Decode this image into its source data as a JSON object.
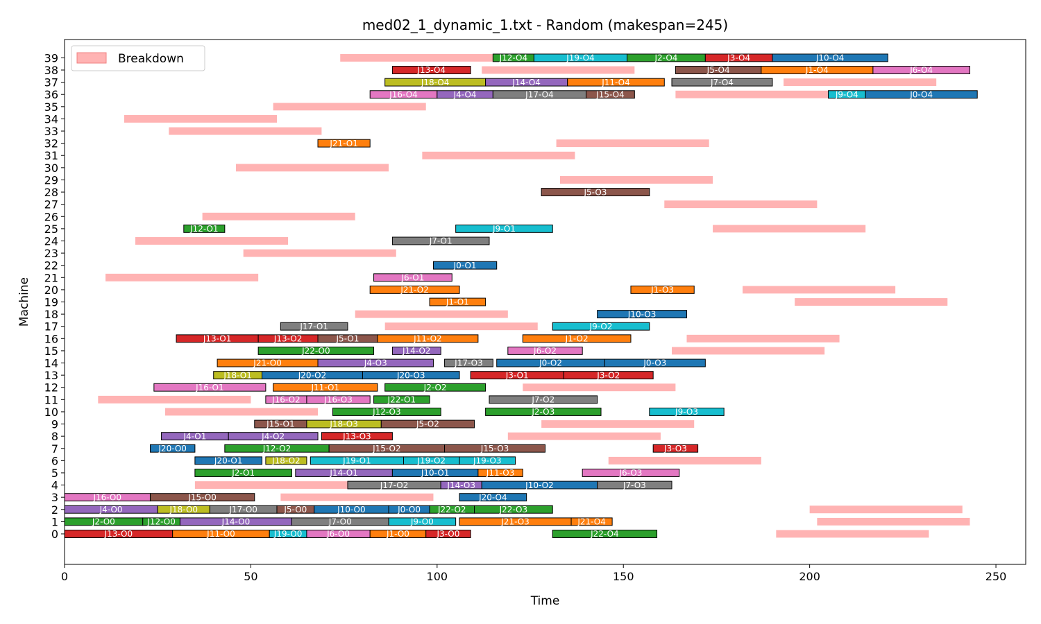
{
  "chart_data": {
    "type": "gantt",
    "title": "med02_1_dynamic_1.txt - Random (makespan=245)",
    "xlabel": "Time",
    "ylabel": "Machine",
    "xlim": [
      0,
      258
    ],
    "ylim": [
      -2.5,
      40.5
    ],
    "xticks": [
      0,
      50,
      100,
      150,
      200,
      250
    ],
    "yticks": [
      0,
      1,
      2,
      3,
      4,
      5,
      6,
      7,
      8,
      9,
      10,
      11,
      12,
      13,
      14,
      15,
      16,
      17,
      18,
      19,
      20,
      21,
      22,
      23,
      24,
      25,
      26,
      27,
      28,
      29,
      30,
      31,
      32,
      33,
      34,
      35,
      36,
      37,
      38,
      39
    ],
    "grid": false,
    "legend": {
      "position": "top-left",
      "entries": [
        {
          "label": "Breakdown",
          "color": "#ffb3b3"
        }
      ]
    },
    "job_colors": {
      "J0": "#1f77b4",
      "J1": "#ff7f0e",
      "J2": "#2ca02c",
      "J3": "#d62728",
      "J4": "#9467bd",
      "J5": "#8c564b",
      "J6": "#e377c2",
      "J7": "#7f7f7f",
      "J8": "#bcbd22",
      "J9": "#17becf",
      "J10": "#1f77b4",
      "J11": "#ff7f0e",
      "J12": "#2ca02c",
      "J13": "#d62728",
      "J14": "#9467bd",
      "J15": "#8c564b",
      "J16": "#e377c2",
      "J17": "#7f7f7f",
      "J18": "#bcbd22",
      "J19": "#17becf",
      "J20": "#1f77b4",
      "J21": "#ff7f0e",
      "J22": "#2ca02c"
    },
    "breakdown_color": "#ffb3b3",
    "breakdowns": [
      {
        "machine": 39,
        "start": 74,
        "end": 115
      },
      {
        "machine": 38,
        "start": 112,
        "end": 153
      },
      {
        "machine": 37,
        "start": 193,
        "end": 234
      },
      {
        "machine": 36,
        "start": 164,
        "end": 205
      },
      {
        "machine": 35,
        "start": 56,
        "end": 97
      },
      {
        "machine": 34,
        "start": 16,
        "end": 57
      },
      {
        "machine": 33,
        "start": 28,
        "end": 69
      },
      {
        "machine": 32,
        "start": 132,
        "end": 173
      },
      {
        "machine": 31,
        "start": 96,
        "end": 137
      },
      {
        "machine": 30,
        "start": 46,
        "end": 87
      },
      {
        "machine": 29,
        "start": 133,
        "end": 174
      },
      {
        "machine": 27,
        "start": 161,
        "end": 202
      },
      {
        "machine": 26,
        "start": 37,
        "end": 78
      },
      {
        "machine": 25,
        "start": 174,
        "end": 215
      },
      {
        "machine": 24,
        "start": 19,
        "end": 60
      },
      {
        "machine": 23,
        "start": 48,
        "end": 89
      },
      {
        "machine": 21,
        "start": 11,
        "end": 52
      },
      {
        "machine": 20,
        "start": 182,
        "end": 223
      },
      {
        "machine": 19,
        "start": 196,
        "end": 237
      },
      {
        "machine": 18,
        "start": 78,
        "end": 119
      },
      {
        "machine": 17,
        "start": 86,
        "end": 127
      },
      {
        "machine": 16,
        "start": 167,
        "end": 208
      },
      {
        "machine": 15,
        "start": 163,
        "end": 204
      },
      {
        "machine": 12,
        "start": 123,
        "end": 164
      },
      {
        "machine": 11,
        "start": 9,
        "end": 50
      },
      {
        "machine": 10,
        "start": 27,
        "end": 68
      },
      {
        "machine": 9,
        "start": 128,
        "end": 169
      },
      {
        "machine": 8,
        "start": 119,
        "end": 160
      },
      {
        "machine": 6,
        "start": 146,
        "end": 187
      },
      {
        "machine": 4,
        "start": 35,
        "end": 76
      },
      {
        "machine": 3,
        "start": 58,
        "end": 99
      },
      {
        "machine": 2,
        "start": 200,
        "end": 241
      },
      {
        "machine": 1,
        "start": 202,
        "end": 243
      },
      {
        "machine": 0,
        "start": 191,
        "end": 232
      }
    ],
    "operations": [
      {
        "machine": 39,
        "label": "J12-O4",
        "job": "J12",
        "start": 115,
        "end": 126
      },
      {
        "machine": 39,
        "label": "J19-O4",
        "job": "J19",
        "start": 126,
        "end": 151
      },
      {
        "machine": 39,
        "label": "J2-O4",
        "job": "J2",
        "start": 151,
        "end": 172
      },
      {
        "machine": 39,
        "label": "J3-O4",
        "job": "J3",
        "start": 172,
        "end": 190
      },
      {
        "machine": 39,
        "label": "J10-O4",
        "job": "J10",
        "start": 190,
        "end": 221
      },
      {
        "machine": 38,
        "label": "J13-O4",
        "job": "J13",
        "start": 88,
        "end": 109
      },
      {
        "machine": 38,
        "label": "J5-O4",
        "job": "J5",
        "start": 164,
        "end": 187
      },
      {
        "machine": 38,
        "label": "J1-O4",
        "job": "J1",
        "start": 187,
        "end": 217
      },
      {
        "machine": 38,
        "label": "J6-O4",
        "job": "J6",
        "start": 217,
        "end": 243
      },
      {
        "machine": 37,
        "label": "J18-O4",
        "job": "J18",
        "start": 86,
        "end": 113
      },
      {
        "machine": 37,
        "label": "J14-O4",
        "job": "J14",
        "start": 113,
        "end": 135
      },
      {
        "machine": 37,
        "label": "J11-O4",
        "job": "J11",
        "start": 135,
        "end": 161
      },
      {
        "machine": 37,
        "label": "J7-O4",
        "job": "J7",
        "start": 163,
        "end": 190
      },
      {
        "machine": 36,
        "label": "J16-O4",
        "job": "J16",
        "start": 82,
        "end": 100
      },
      {
        "machine": 36,
        "label": "J4-O4",
        "job": "J4",
        "start": 100,
        "end": 115
      },
      {
        "machine": 36,
        "label": "J17-O4",
        "job": "J17",
        "start": 115,
        "end": 140
      },
      {
        "machine": 36,
        "label": "J15-O4",
        "job": "J15",
        "start": 140,
        "end": 153
      },
      {
        "machine": 36,
        "label": "J9-O4",
        "job": "J9",
        "start": 205,
        "end": 215
      },
      {
        "machine": 36,
        "label": "J0-O4",
        "job": "J0",
        "start": 215,
        "end": 245
      },
      {
        "machine": 32,
        "label": "J21-O1",
        "job": "J21",
        "start": 68,
        "end": 82
      },
      {
        "machine": 28,
        "label": "J5-O3",
        "job": "J5",
        "start": 128,
        "end": 157
      },
      {
        "machine": 25,
        "label": "J12-O1",
        "job": "J12",
        "start": 32,
        "end": 43
      },
      {
        "machine": 25,
        "label": "J9-O1",
        "job": "J9",
        "start": 105,
        "end": 131
      },
      {
        "machine": 24,
        "label": "J7-O1",
        "job": "J7",
        "start": 88,
        "end": 114
      },
      {
        "machine": 22,
        "label": "J0-O1",
        "job": "J0",
        "start": 99,
        "end": 116
      },
      {
        "machine": 21,
        "label": "J6-O1",
        "job": "J6",
        "start": 83,
        "end": 104
      },
      {
        "machine": 20,
        "label": "J21-O2",
        "job": "J21",
        "start": 82,
        "end": 106
      },
      {
        "machine": 20,
        "label": "J1-O3",
        "job": "J1",
        "start": 152,
        "end": 169
      },
      {
        "machine": 19,
        "label": "J1-O1",
        "job": "J1",
        "start": 98,
        "end": 113
      },
      {
        "machine": 18,
        "label": "J10-O3",
        "job": "J10",
        "start": 143,
        "end": 167
      },
      {
        "machine": 17,
        "label": "J17-O1",
        "job": "J17",
        "start": 58,
        "end": 76
      },
      {
        "machine": 17,
        "label": "J9-O2",
        "job": "J9",
        "start": 131,
        "end": 157
      },
      {
        "machine": 16,
        "label": "J13-O1",
        "job": "J13",
        "start": 30,
        "end": 52
      },
      {
        "machine": 16,
        "label": "J13-O2",
        "job": "J13",
        "start": 52,
        "end": 68
      },
      {
        "machine": 16,
        "label": "J5-O1",
        "job": "J5",
        "start": 68,
        "end": 84
      },
      {
        "machine": 16,
        "label": "J11-O2",
        "job": "J11",
        "start": 84,
        "end": 111
      },
      {
        "machine": 16,
        "label": "J1-O2",
        "job": "J1",
        "start": 123,
        "end": 152
      },
      {
        "machine": 15,
        "label": "J22-O0",
        "job": "J22",
        "start": 52,
        "end": 83
      },
      {
        "machine": 15,
        "label": "J14-O2",
        "job": "J14",
        "start": 88,
        "end": 101
      },
      {
        "machine": 15,
        "label": "J6-O2",
        "job": "J6",
        "start": 119,
        "end": 139
      },
      {
        "machine": 14,
        "label": "J21-O0",
        "job": "J21",
        "start": 41,
        "end": 68
      },
      {
        "machine": 14,
        "label": "J4-O3",
        "job": "J4",
        "start": 68,
        "end": 99
      },
      {
        "machine": 14,
        "label": "J17-O3",
        "job": "J17",
        "start": 102,
        "end": 115
      },
      {
        "machine": 14,
        "label": "J0-O2",
        "job": "J0",
        "start": 116,
        "end": 145
      },
      {
        "machine": 14,
        "label": "J0-O3",
        "job": "J0",
        "start": 145,
        "end": 172
      },
      {
        "machine": 13,
        "label": "J18-O1",
        "job": "J18",
        "start": 40,
        "end": 53
      },
      {
        "machine": 13,
        "label": "J20-O2",
        "job": "J20",
        "start": 53,
        "end": 80
      },
      {
        "machine": 13,
        "label": "J20-O3",
        "job": "J20",
        "start": 80,
        "end": 106
      },
      {
        "machine": 13,
        "label": "J3-O1",
        "job": "J3",
        "start": 109,
        "end": 134
      },
      {
        "machine": 13,
        "label": "J3-O2",
        "job": "J3",
        "start": 134,
        "end": 158
      },
      {
        "machine": 12,
        "label": "J16-O1",
        "job": "J16",
        "start": 24,
        "end": 54
      },
      {
        "machine": 12,
        "label": "J11-O1",
        "job": "J11",
        "start": 56,
        "end": 84
      },
      {
        "machine": 12,
        "label": "J2-O2",
        "job": "J2",
        "start": 86,
        "end": 113
      },
      {
        "machine": 11,
        "label": "J16-O2",
        "job": "J16",
        "start": 54,
        "end": 65
      },
      {
        "machine": 11,
        "label": "J16-O3",
        "job": "J16",
        "start": 65,
        "end": 82
      },
      {
        "machine": 11,
        "label": "J22-O1",
        "job": "J22",
        "start": 83,
        "end": 98
      },
      {
        "machine": 11,
        "label": "J7-O2",
        "job": "J7",
        "start": 114,
        "end": 143
      },
      {
        "machine": 10,
        "label": "J12-O3",
        "job": "J12",
        "start": 72,
        "end": 101
      },
      {
        "machine": 10,
        "label": "J2-O3",
        "job": "J2",
        "start": 113,
        "end": 144
      },
      {
        "machine": 10,
        "label": "J9-O3",
        "job": "J9",
        "start": 157,
        "end": 177
      },
      {
        "machine": 9,
        "label": "J15-O1",
        "job": "J15",
        "start": 51,
        "end": 65
      },
      {
        "machine": 9,
        "label": "J18-O3",
        "job": "J18",
        "start": 65,
        "end": 85
      },
      {
        "machine": 9,
        "label": "J5-O2",
        "job": "J5",
        "start": 85,
        "end": 110
      },
      {
        "machine": 8,
        "label": "J4-O1",
        "job": "J4",
        "start": 26,
        "end": 44
      },
      {
        "machine": 8,
        "label": "J4-O2",
        "job": "J4",
        "start": 44,
        "end": 68
      },
      {
        "machine": 8,
        "label": "J13-O3",
        "job": "J13",
        "start": 69,
        "end": 88
      },
      {
        "machine": 7,
        "label": "J20-O0",
        "job": "J20",
        "start": 23,
        "end": 35
      },
      {
        "machine": 7,
        "label": "J12-O2",
        "job": "J12",
        "start": 43,
        "end": 71
      },
      {
        "machine": 7,
        "label": "J15-O2",
        "job": "J15",
        "start": 71,
        "end": 102
      },
      {
        "machine": 7,
        "label": "J15-O3",
        "job": "J15",
        "start": 102,
        "end": 129
      },
      {
        "machine": 7,
        "label": "J3-O3",
        "job": "J3",
        "start": 158,
        "end": 170
      },
      {
        "machine": 6,
        "label": "J20-O1",
        "job": "J20",
        "start": 35,
        "end": 53
      },
      {
        "machine": 6,
        "label": "J18-O2",
        "job": "J18",
        "start": 54,
        "end": 65
      },
      {
        "machine": 6,
        "label": "J19-O1",
        "job": "J19",
        "start": 66,
        "end": 91
      },
      {
        "machine": 6,
        "label": "J19-O2",
        "job": "J19",
        "start": 91,
        "end": 106
      },
      {
        "machine": 6,
        "label": "J19-O3",
        "job": "J19",
        "start": 106,
        "end": 121
      },
      {
        "machine": 5,
        "label": "J2-O1",
        "job": "J2",
        "start": 35,
        "end": 61
      },
      {
        "machine": 5,
        "label": "J14-O1",
        "job": "J14",
        "start": 62,
        "end": 88
      },
      {
        "machine": 5,
        "label": "J10-O1",
        "job": "J10",
        "start": 88,
        "end": 111
      },
      {
        "machine": 5,
        "label": "J11-O3",
        "job": "J11",
        "start": 111,
        "end": 123
      },
      {
        "machine": 5,
        "label": "J6-O3",
        "job": "J6",
        "start": 139,
        "end": 165
      },
      {
        "machine": 4,
        "label": "J17-O2",
        "job": "J17",
        "start": 76,
        "end": 101
      },
      {
        "machine": 4,
        "label": "J14-O3",
        "job": "J14",
        "start": 101,
        "end": 112
      },
      {
        "machine": 4,
        "label": "J10-O2",
        "job": "J10",
        "start": 112,
        "end": 143
      },
      {
        "machine": 4,
        "label": "J7-O3",
        "job": "J7",
        "start": 143,
        "end": 163
      },
      {
        "machine": 3,
        "label": "J16-O0",
        "job": "J16",
        "start": 0,
        "end": 23
      },
      {
        "machine": 3,
        "label": "J15-O0",
        "job": "J15",
        "start": 23,
        "end": 51
      },
      {
        "machine": 3,
        "label": "J20-O4",
        "job": "J20",
        "start": 106,
        "end": 124
      },
      {
        "machine": 2,
        "label": "J4-O0",
        "job": "J4",
        "start": 0,
        "end": 25
      },
      {
        "machine": 2,
        "label": "J18-O0",
        "job": "J18",
        "start": 25,
        "end": 39
      },
      {
        "machine": 2,
        "label": "J17-O0",
        "job": "J17",
        "start": 39,
        "end": 57
      },
      {
        "machine": 2,
        "label": "J5-O0",
        "job": "J5",
        "start": 57,
        "end": 67
      },
      {
        "machine": 2,
        "label": "J10-O0",
        "job": "J10",
        "start": 67,
        "end": 87
      },
      {
        "machine": 2,
        "label": "J0-O0",
        "job": "J0",
        "start": 87,
        "end": 98
      },
      {
        "machine": 2,
        "label": "J22-O2",
        "job": "J22",
        "start": 98,
        "end": 110
      },
      {
        "machine": 2,
        "label": "J22-O3",
        "job": "J22",
        "start": 110,
        "end": 131
      },
      {
        "machine": 1,
        "label": "J2-O0",
        "job": "J2",
        "start": 0,
        "end": 21
      },
      {
        "machine": 1,
        "label": "J12-O0",
        "job": "J12",
        "start": 21,
        "end": 31
      },
      {
        "machine": 1,
        "label": "J14-O0",
        "job": "J14",
        "start": 31,
        "end": 61
      },
      {
        "machine": 1,
        "label": "J7-O0",
        "job": "J7",
        "start": 61,
        "end": 87
      },
      {
        "machine": 1,
        "label": "J9-O0",
        "job": "J9",
        "start": 87,
        "end": 105
      },
      {
        "machine": 1,
        "label": "J21-O3",
        "job": "J21",
        "start": 106,
        "end": 136
      },
      {
        "machine": 1,
        "label": "J21-O4",
        "job": "J21",
        "start": 136,
        "end": 147
      },
      {
        "machine": 0,
        "label": "J13-O0",
        "job": "J13",
        "start": 0,
        "end": 29
      },
      {
        "machine": 0,
        "label": "J11-O0",
        "job": "J11",
        "start": 29,
        "end": 55
      },
      {
        "machine": 0,
        "label": "J19-O0",
        "job": "J19",
        "start": 55,
        "end": 65
      },
      {
        "machine": 0,
        "label": "J6-O0",
        "job": "J6",
        "start": 65,
        "end": 82
      },
      {
        "machine": 0,
        "label": "J1-O0",
        "job": "J1",
        "start": 82,
        "end": 97
      },
      {
        "machine": 0,
        "label": "J3-O0",
        "job": "J3",
        "start": 97,
        "end": 109
      },
      {
        "machine": 0,
        "label": "J22-O4",
        "job": "J22",
        "start": 131,
        "end": 159
      }
    ]
  }
}
